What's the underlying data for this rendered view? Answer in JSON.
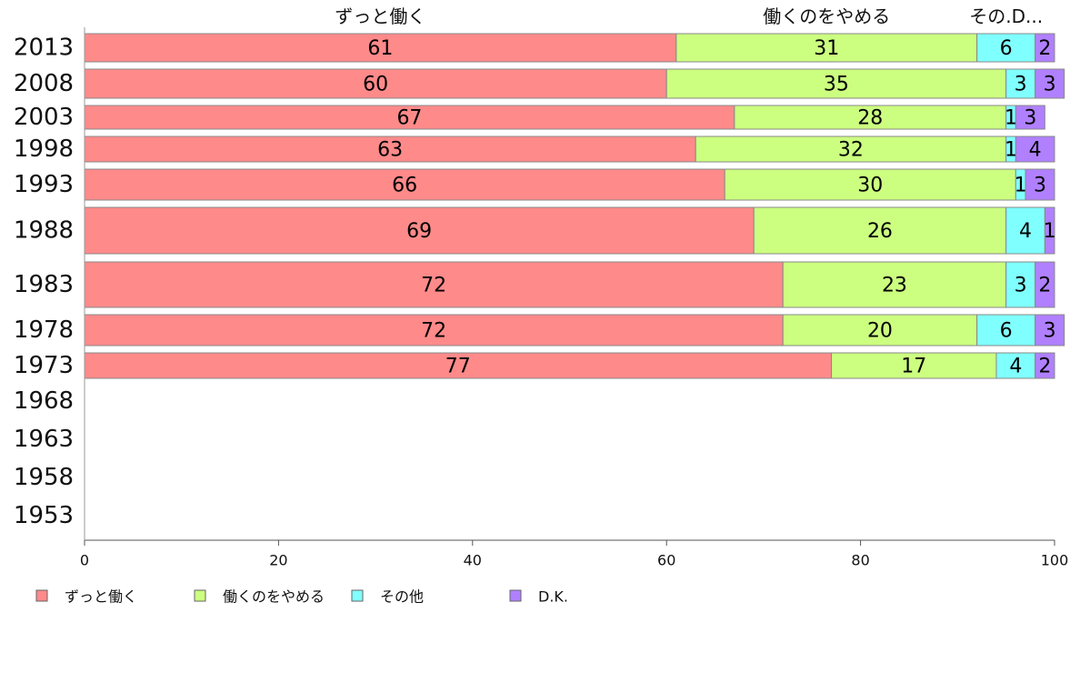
{
  "chart_data": {
    "type": "bar",
    "orientation": "horizontal",
    "stacked": "100%",
    "categories": [
      "2013",
      "2008",
      "2003",
      "1998",
      "1993",
      "1988",
      "1983",
      "1978",
      "1973",
      "1968",
      "1963",
      "1958",
      "1953"
    ],
    "series": [
      {
        "name": "ずっと働く",
        "color": "#ff8a8a",
        "values": [
          61,
          60,
          67,
          63,
          66,
          69,
          72,
          72,
          77,
          null,
          null,
          null,
          null
        ]
      },
      {
        "name": "働くのをやめる",
        "color": "#ccff80",
        "values": [
          31,
          35,
          28,
          32,
          30,
          26,
          23,
          20,
          17,
          null,
          null,
          null,
          null
        ]
      },
      {
        "name": "その他",
        "color": "#80ffff",
        "values": [
          6,
          3,
          1,
          1,
          1,
          4,
          3,
          6,
          4,
          null,
          null,
          null,
          null
        ]
      },
      {
        "name": "D.K.",
        "color": "#b080ff",
        "values": [
          2,
          3,
          3,
          4,
          3,
          1,
          2,
          3,
          2,
          null,
          null,
          null,
          null
        ]
      }
    ],
    "top_labels": [
      "ずっと働く",
      "働くのをやめる",
      "その.D..."
    ],
    "xlim": [
      0,
      100
    ],
    "xticks": [
      0,
      20,
      40,
      60,
      80,
      100
    ],
    "grid": false,
    "legend_position": "bottom"
  }
}
